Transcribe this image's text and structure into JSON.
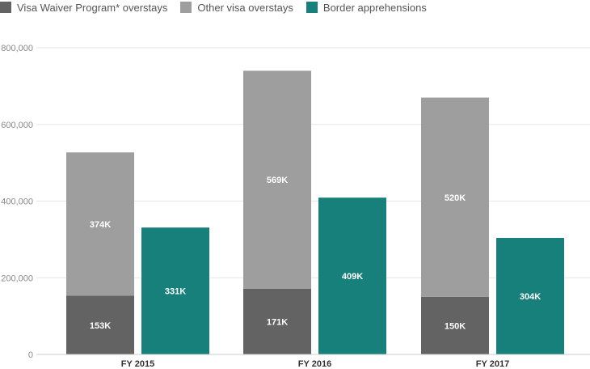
{
  "chart_data": {
    "type": "bar",
    "stacked_groups": true,
    "categories": [
      "FY 2015",
      "FY 2016",
      "FY 2017"
    ],
    "series": [
      {
        "name": "Visa Waiver Program* overstays",
        "values": [
          153000,
          171000,
          150000
        ],
        "labels": [
          "153K",
          "171K",
          "150K"
        ],
        "color": "#636363",
        "stack": "overstays"
      },
      {
        "name": "Other visa overstays",
        "values": [
          374000,
          569000,
          520000
        ],
        "labels": [
          "374K",
          "569K",
          "520K"
        ],
        "color": "#9e9e9e",
        "stack": "overstays"
      },
      {
        "name": "Border apprehensions",
        "values": [
          331000,
          409000,
          304000
        ],
        "labels": [
          "331K",
          "409K",
          "304K"
        ],
        "color": "#17807a",
        "stack": "apprehensions"
      }
    ],
    "yticks": [
      {
        "value": 0,
        "label": "0"
      },
      {
        "value": 200000,
        "label": "200,000"
      },
      {
        "value": 400000,
        "label": "400,000"
      },
      {
        "value": 600000,
        "label": "600,000"
      },
      {
        "value": 800000,
        "label": "800,000"
      }
    ],
    "ylim": [
      0,
      800000
    ],
    "grid": true,
    "legend": "top-left",
    "title": "",
    "xlabel": "",
    "ylabel": ""
  }
}
